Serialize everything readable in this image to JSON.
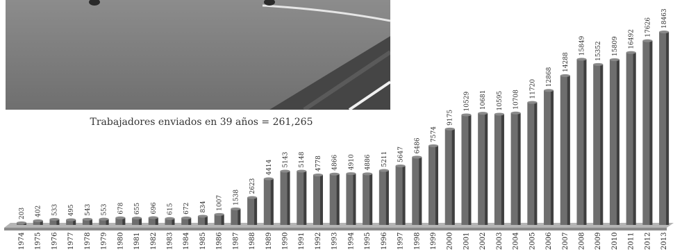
{
  "caption": "Trabajadores enviados en 39 años = 261,265",
  "colors": {
    "bar": "#6e6e6e",
    "bar_shade": "#3f3f3f",
    "floor": "#b5b5b5",
    "text": "#2a2a2a"
  },
  "photo": {
    "description_icon": "road-with-barrier-photo"
  },
  "chart_data": {
    "type": "bar",
    "title": "",
    "xlabel": "",
    "ylabel": "",
    "categories": [
      "1974",
      "1975",
      "1976",
      "1977",
      "1978",
      "1979",
      "1980",
      "1981",
      "1982",
      "1983",
      "1984",
      "1985",
      "1986",
      "1987",
      "1988",
      "1989",
      "1990",
      "1991",
      "1992",
      "1993",
      "1994",
      "1995",
      "1996",
      "1997",
      "1998",
      "1999",
      "2000",
      "2001",
      "2002",
      "2003",
      "2004",
      "2005",
      "2006",
      "2007",
      "2008",
      "2009",
      "2010",
      "2011",
      "2012",
      "2013"
    ],
    "values": [
      203,
      402,
      533,
      495,
      543,
      553,
      678,
      655,
      696,
      615,
      672,
      834,
      1007,
      1538,
      2623,
      4414,
      5143,
      5148,
      4778,
      4866,
      4910,
      4886,
      5211,
      5647,
      6486,
      7574,
      9175,
      10529,
      10681,
      10595,
      10708,
      11720,
      12868,
      14288,
      15849,
      15352,
      15809,
      16492,
      17626,
      18463
    ],
    "ylim": [
      0,
      18463
    ],
    "grid": false,
    "legend": "none",
    "data_labels": true
  }
}
